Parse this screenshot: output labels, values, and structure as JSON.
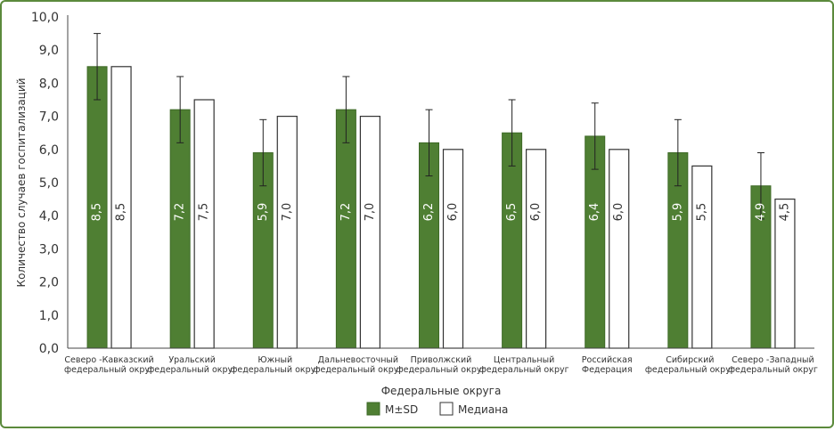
{
  "colors": {
    "mean_bar": "#4f7f33",
    "mean_bar_border": "#3e6a27",
    "median_bar": "#ffffff",
    "median_bar_border": "#333333",
    "frame": "#5b8a3c",
    "axis": "#444444",
    "text": "#333333"
  },
  "chart_data": {
    "type": "bar",
    "xlabel": "Федеральные округа",
    "ylabel": "Количество случаев госпитализаций",
    "ylim": [
      0,
      10
    ],
    "y_ticks": [
      "0,0",
      "1,0",
      "2,0",
      "3,0",
      "4,0",
      "5,0",
      "6,0",
      "7,0",
      "8,0",
      "9,0",
      "10,0"
    ],
    "legend_placement": "bottom-center",
    "grid": false,
    "categories": [
      [
        "Северо -Кавказский",
        "федеральный округ"
      ],
      [
        "Уральский",
        "федеральный округ"
      ],
      [
        "Южный",
        "федеральный округ"
      ],
      [
        "Дальневосточный",
        "федеральный округ"
      ],
      [
        "Приволжский",
        "федеральный округ"
      ],
      [
        "Центральный",
        "федеральный округ"
      ],
      [
        "Российская",
        "Федерация"
      ],
      [
        "Сибирский",
        "федеральный округ"
      ],
      [
        "Северо -Западный",
        "федеральный округ"
      ]
    ],
    "series": [
      {
        "name": "M±SD",
        "values": [
          8.5,
          7.2,
          5.9,
          7.2,
          6.2,
          6.5,
          6.4,
          5.9,
          4.9
        ],
        "labels": [
          "8,5",
          "7,2",
          "5,9",
          "7,2",
          "6,2",
          "6,5",
          "6,4",
          "5,9",
          "4,9"
        ],
        "error_sd": [
          1.0,
          1.0,
          1.0,
          1.0,
          1.0,
          1.0,
          1.0,
          1.0,
          1.0
        ]
      },
      {
        "name": "Медиана",
        "values": [
          8.5,
          7.5,
          7.0,
          7.0,
          6.0,
          6.0,
          6.0,
          5.5,
          4.5
        ],
        "labels": [
          "8,5",
          "7,5",
          "7,0",
          "7,0",
          "6,0",
          "6,0",
          "6,0",
          "5,5",
          "4,5"
        ]
      }
    ]
  }
}
